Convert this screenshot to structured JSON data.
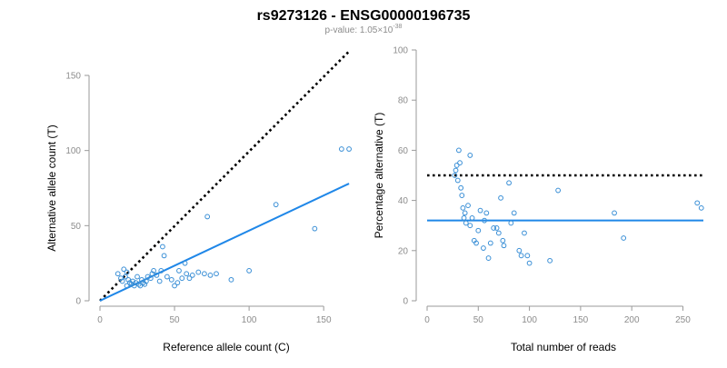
{
  "header": {
    "title": "rs9273126 - ENSG00000196735",
    "pvalue_prefix": "p-value: 1.05×10",
    "pvalue_exponent": "-38"
  },
  "colors": {
    "points": "#3a8fd6",
    "fit": "#1f87e8",
    "reference": "#000000",
    "axis": "#9a9a9a",
    "tick_text": "#8c8c8c"
  },
  "chart_data": [
    {
      "type": "scatter",
      "id": "left",
      "xlabel": "Reference allele count (C)",
      "ylabel": "Alternative allele count (T)",
      "xlim": [
        0,
        170
      ],
      "ylim": [
        0,
        150
      ],
      "xticks": [
        0,
        50,
        100,
        150
      ],
      "yticks": [
        0,
        50,
        100,
        150
      ],
      "grid": false,
      "reference_line": {
        "style": "dotted",
        "from": [
          0,
          0
        ],
        "to": [
          167,
          166
        ]
      },
      "fit_line": {
        "from": [
          0,
          0
        ],
        "to": [
          167,
          78
        ]
      },
      "points": [
        [
          12,
          18
        ],
        [
          14,
          15
        ],
        [
          15,
          13
        ],
        [
          16,
          21
        ],
        [
          17,
          16
        ],
        [
          18,
          19
        ],
        [
          19,
          14
        ],
        [
          20,
          12
        ],
        [
          21,
          11
        ],
        [
          18,
          10
        ],
        [
          22,
          13
        ],
        [
          23,
          10
        ],
        [
          24,
          12
        ],
        [
          25,
          16
        ],
        [
          26,
          11
        ],
        [
          27,
          10
        ],
        [
          28,
          14
        ],
        [
          29,
          12
        ],
        [
          30,
          11
        ],
        [
          31,
          13
        ],
        [
          32,
          16
        ],
        [
          34,
          15
        ],
        [
          35,
          18
        ],
        [
          36,
          20
        ],
        [
          38,
          17
        ],
        [
          40,
          13
        ],
        [
          41,
          20
        ],
        [
          42,
          36
        ],
        [
          43,
          30
        ],
        [
          45,
          16
        ],
        [
          48,
          14
        ],
        [
          50,
          10
        ],
        [
          52,
          12
        ],
        [
          53,
          20
        ],
        [
          55,
          15
        ],
        [
          57,
          25
        ],
        [
          58,
          18
        ],
        [
          60,
          15
        ],
        [
          62,
          17
        ],
        [
          66,
          19
        ],
        [
          70,
          18
        ],
        [
          72,
          56
        ],
        [
          74,
          17
        ],
        [
          78,
          18
        ],
        [
          88,
          14
        ],
        [
          100,
          20
        ],
        [
          118,
          64
        ],
        [
          144,
          48
        ],
        [
          162,
          101
        ],
        [
          167,
          101
        ]
      ]
    },
    {
      "type": "scatter",
      "id": "right",
      "xlabel": "Total number of reads",
      "ylabel": "Percentage alternative (T)",
      "xlim": [
        0,
        270
      ],
      "ylim": [
        0,
        100
      ],
      "xticks": [
        0,
        50,
        100,
        150,
        200,
        250
      ],
      "yticks": [
        0,
        20,
        40,
        60,
        80,
        100
      ],
      "grid": false,
      "reference_line": {
        "style": "dotted",
        "y": 50
      },
      "fit_line": {
        "y": 32
      },
      "points": [
        [
          27,
          50
        ],
        [
          28,
          52
        ],
        [
          29,
          54
        ],
        [
          30,
          48
        ],
        [
          31,
          60
        ],
        [
          32,
          55
        ],
        [
          33,
          45
        ],
        [
          34,
          42
        ],
        [
          35,
          37
        ],
        [
          36,
          33
        ],
        [
          37,
          35
        ],
        [
          38,
          31
        ],
        [
          40,
          38
        ],
        [
          42,
          58
        ],
        [
          42,
          30
        ],
        [
          44,
          33
        ],
        [
          46,
          24
        ],
        [
          48,
          23
        ],
        [
          50,
          28
        ],
        [
          52,
          36
        ],
        [
          55,
          21
        ],
        [
          56,
          32
        ],
        [
          58,
          35
        ],
        [
          60,
          17
        ],
        [
          62,
          23
        ],
        [
          65,
          29
        ],
        [
          68,
          29
        ],
        [
          70,
          27
        ],
        [
          72,
          41
        ],
        [
          74,
          24
        ],
        [
          75,
          22
        ],
        [
          80,
          47
        ],
        [
          82,
          31
        ],
        [
          85,
          35
        ],
        [
          90,
          20
        ],
        [
          92,
          18
        ],
        [
          95,
          27
        ],
        [
          98,
          18
        ],
        [
          100,
          15
        ],
        [
          120,
          16
        ],
        [
          128,
          44
        ],
        [
          183,
          35
        ],
        [
          192,
          25
        ],
        [
          264,
          39
        ],
        [
          268,
          37
        ]
      ]
    }
  ]
}
